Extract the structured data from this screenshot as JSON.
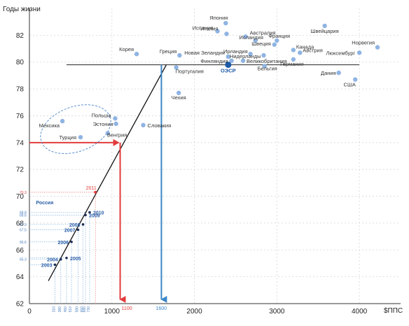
{
  "chart_data": {
    "type": "scatter",
    "title": "",
    "ylabel": "Годы жизни",
    "xlabel": "$ППС",
    "xlim": [
      0,
      4500
    ],
    "ylim": [
      62,
      84
    ],
    "x_ticks": [
      "0",
      "1000",
      "2000",
      "3000",
      "4000"
    ],
    "y_ticks": [
      "62",
      "64",
      "66",
      "68",
      "70",
      "72",
      "74",
      "76",
      "78",
      "80",
      "82"
    ],
    "grid": true,
    "countries": [
      {
        "label": "Япония",
        "x": 2380,
        "y": 82.9
      },
      {
        "label": "Италия",
        "x": 2390,
        "y": 82.1
      },
      {
        "label": "Испания",
        "x": 2280,
        "y": 82.3
      },
      {
        "label": "Австралия",
        "x": 2620,
        "y": 81.9
      },
      {
        "label": "Исландия",
        "x": 2740,
        "y": 81.6
      },
      {
        "label": "Швейцария",
        "x": 3580,
        "y": 82.7
      },
      {
        "label": "Франция",
        "x": 3000,
        "y": 81.6
      },
      {
        "label": "Швеция",
        "x": 2970,
        "y": 81.3
      },
      {
        "label": "Норвегия",
        "x": 4220,
        "y": 81.1
      },
      {
        "label": "Канада",
        "x": 3200,
        "y": 80.9
      },
      {
        "label": "Австрия",
        "x": 3280,
        "y": 80.7
      },
      {
        "label": "Ирландия",
        "x": 2680,
        "y": 80.6
      },
      {
        "label": "Новая Зеландия",
        "x": 2410,
        "y": 80.4
      },
      {
        "label": "Нидерланды",
        "x": 2840,
        "y": 80.5
      },
      {
        "label": "Люксембург",
        "x": 4000,
        "y": 80.7
      },
      {
        "label": "Корея",
        "x": 1300,
        "y": 80.6
      },
      {
        "label": "Греция",
        "x": 1820,
        "y": 80.5
      },
      {
        "label": "Финляндия",
        "x": 2450,
        "y": 80.1
      },
      {
        "label": "Великобритания",
        "x": 2590,
        "y": 80.1
      },
      {
        "label": "Германия",
        "x": 3200,
        "y": 80.2
      },
      {
        "label": "Португалия",
        "x": 1780,
        "y": 79.6
      },
      {
        "label": "Бельгия",
        "x": 2850,
        "y": 79.7
      },
      {
        "label": "Дания",
        "x": 3750,
        "y": 79.2
      },
      {
        "label": "США",
        "x": 3950,
        "y": 78.7
      },
      {
        "label": "Чехия",
        "x": 1810,
        "y": 77.7
      },
      {
        "label": "Польша",
        "x": 1040,
        "y": 75.8
      },
      {
        "label": "Эстония",
        "x": 1050,
        "y": 75.4
      },
      {
        "label": "Словакия",
        "x": 1380,
        "y": 75.3
      },
      {
        "label": "Мексика",
        "x": 400,
        "y": 75.6
      },
      {
        "label": "Турция",
        "x": 620,
        "y": 74.4
      },
      {
        "label": "Венгрия",
        "x": 950,
        "y": 74.7
      }
    ],
    "oecd": {
      "label": "ОЭСР",
      "x": 2410,
      "y": 79.8
    },
    "russia": {
      "label": "Россия",
      "points": [
        {
          "label": "2003",
          "x": 310,
          "y": 64.9
        },
        {
          "label": "2004",
          "x": 380,
          "y": 65.3
        },
        {
          "label": "2005",
          "x": 450,
          "y": 65.4
        },
        {
          "label": "2006",
          "x": 510,
          "y": 66.6
        },
        {
          "label": "2007",
          "x": 590,
          "y": 67.5
        },
        {
          "label": "2008",
          "x": 650,
          "y": 67.9
        },
        {
          "label": "2009",
          "x": 680,
          "y": 68.6
        },
        {
          "label": "2010",
          "x": 730,
          "y": 68.8
        }
      ],
      "y_labels": [
        "68.8",
        "68.6",
        "67.9",
        "67.5",
        "66.6",
        "65.3"
      ],
      "x_labels": [
        "310",
        "380",
        "450",
        "510",
        "590",
        "650",
        "680",
        "730"
      ]
    },
    "target_2011": {
      "label": "2011",
      "value_label": "70.3",
      "x": 800,
      "y": 70.3
    },
    "trend_line": {
      "x1": 230,
      "y1": 63.7,
      "x2": 1660,
      "y2": 79.8
    },
    "oecd_level_y": 79.8,
    "oecd_line_x": [
      450,
      4000
    ],
    "red_marker": {
      "x": 1100,
      "y": 74.0,
      "label": "1100"
    },
    "blue_marker": {
      "x": 1600,
      "y": 79.8,
      "label": "1600"
    }
  }
}
